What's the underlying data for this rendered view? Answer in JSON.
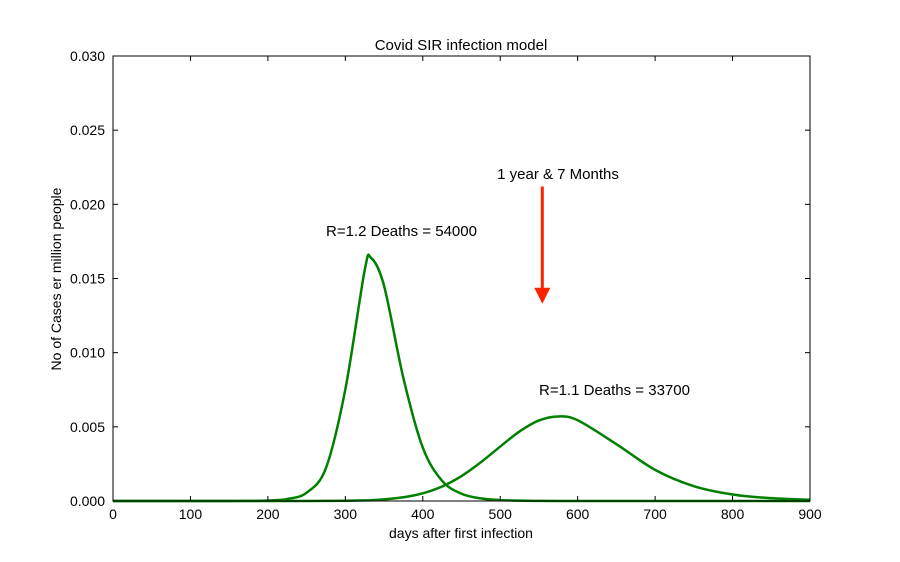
{
  "chart_data": {
    "type": "line",
    "title": "Covid SIR infection model",
    "xlabel": "days after first infection",
    "ylabel": "No of Cases er million people",
    "xlim": [
      0,
      900
    ],
    "ylim": [
      0,
      0.03
    ],
    "xticks": [
      "0",
      "100",
      "200",
      "300",
      "400",
      "500",
      "600",
      "700",
      "800",
      "900"
    ],
    "yticks": [
      "0.000",
      "0.005",
      "0.010",
      "0.015",
      "0.020",
      "0.025",
      "0.030"
    ],
    "grid": false,
    "x": [
      0,
      50,
      100,
      150,
      175,
      200,
      225,
      250,
      275,
      300,
      325,
      333,
      350,
      375,
      400,
      425,
      450,
      475,
      500,
      525,
      550,
      575,
      600,
      650,
      700,
      750,
      800,
      850,
      900
    ],
    "series": [
      {
        "name": "R=1.2",
        "color": "#008000",
        "values": [
          0,
          0,
          0,
          2e-06,
          8e-06,
          3.3e-05,
          0.000136,
          0.00056,
          0.00223,
          0.00753,
          0.01556,
          0.0164,
          0.01451,
          0.00828,
          0.0036,
          0.00136,
          0.00049,
          0.000175,
          6.2e-05,
          2.2e-05,
          8e-06,
          0,
          0,
          0,
          0,
          0,
          0,
          0,
          0
        ]
      },
      {
        "name": "R=1.1",
        "color": "#008000",
        "values": [
          0,
          0,
          0,
          0,
          0,
          0,
          0,
          0,
          5e-06,
          1.6e-05,
          4.3e-05,
          5e-05,
          0.00011,
          0.00025,
          0.00052,
          0.00098,
          0.00168,
          0.00261,
          0.00367,
          0.00469,
          0.00543,
          0.0057,
          0.00544,
          0.00383,
          0.0021,
          0.001,
          0.00044,
          0.00019,
          8e-05
        ]
      }
    ],
    "annotations": [
      {
        "text": "R=1.2 Deaths = 54000",
        "color": "#4f6b35"
      },
      {
        "text": "R=1.1 Deaths = 33700",
        "color": "#4f6b35"
      },
      {
        "text": "1 year & 7 Months",
        "color": "#ff2200",
        "arrow_x": 575,
        "arrow_from_y": 0.0212,
        "arrow_to_y": 0.0133
      }
    ]
  }
}
